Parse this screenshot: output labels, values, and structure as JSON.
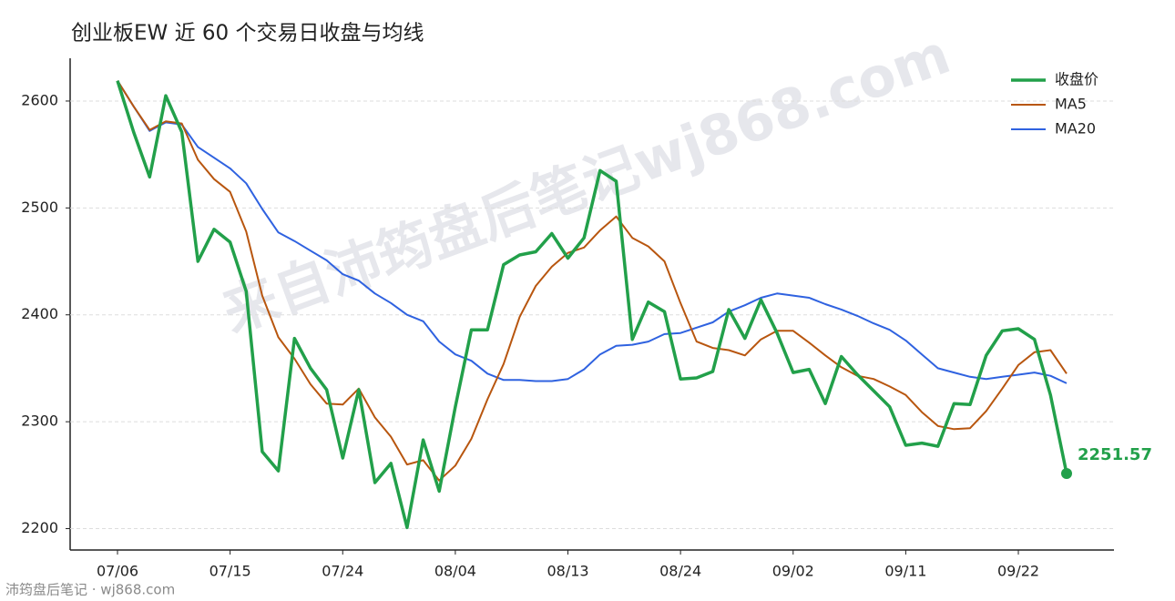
{
  "chart_data": {
    "type": "line",
    "title": "创业板EW 近 60 个交易日收盘与均线",
    "watermark": "来自沛筠盘后笔记wj868.com",
    "source": "沛筠盘后笔记 · wj868.com",
    "categories": [
      "07/06",
      null,
      null,
      null,
      null,
      null,
      null,
      "07/15",
      null,
      null,
      null,
      null,
      null,
      null,
      "07/24",
      null,
      null,
      null,
      null,
      null,
      null,
      "08/04",
      null,
      null,
      null,
      null,
      null,
      null,
      "08/13",
      null,
      null,
      null,
      null,
      null,
      null,
      "08/24",
      null,
      null,
      null,
      null,
      null,
      null,
      "09/02",
      null,
      null,
      null,
      null,
      null,
      null,
      "09/11",
      null,
      null,
      null,
      null,
      null,
      null,
      "09/22",
      null,
      null,
      null
    ],
    "series": [
      {
        "name": "收盘价",
        "color": "#22a04a",
        "values": [
          2619,
          2571,
          2529,
          2605,
          2571,
          2450,
          2480,
          2468,
          2422,
          2272,
          2254,
          2378,
          2350,
          2330,
          2266,
          2330,
          2243,
          2261,
          2201,
          2283,
          2235,
          2314,
          2386,
          2386,
          2447,
          2456,
          2459,
          2476,
          2453,
          2472,
          2535,
          2525,
          2377,
          2412,
          2403,
          2340,
          2341,
          2347,
          2405,
          2378,
          2414,
          2383,
          2346,
          2349,
          2317,
          2361,
          2344,
          2329,
          2314,
          2278,
          2280,
          2277,
          2317,
          2316,
          2362,
          2385,
          2387,
          2377,
          2325,
          2251.57
        ]
      },
      {
        "name": "MA5",
        "color": "#b8560f",
        "values": [
          2619,
          2595,
          2573,
          2581,
          2579,
          2545,
          2527,
          2515,
          2478,
          2418,
          2379,
          2359,
          2335,
          2317,
          2316,
          2331,
          2304,
          2286,
          2260,
          2264,
          2245,
          2259,
          2284,
          2321,
          2354,
          2398,
          2427,
          2445,
          2458,
          2463,
          2479,
          2492,
          2472,
          2464,
          2450,
          2411,
          2375,
          2369,
          2367,
          2362,
          2377,
          2385,
          2385,
          2374,
          2362,
          2351,
          2343,
          2340,
          2333,
          2325,
          2309,
          2296,
          2293,
          2294,
          2310,
          2331,
          2353,
          2365,
          2367,
          2345
        ]
      },
      {
        "name": "MA20",
        "color": "#2f62e0",
        "values": [
          2619,
          2595,
          2572,
          2580,
          2578,
          2557,
          2547,
          2537,
          2523,
          2499,
          2477,
          2469,
          2460,
          2451,
          2438,
          2432,
          2420,
          2411,
          2400,
          2394,
          2375,
          2363,
          2357,
          2345,
          2339,
          2339,
          2338,
          2338,
          2340,
          2349,
          2363,
          2371,
          2372,
          2375,
          2382,
          2383,
          2388,
          2393,
          2403,
          2409,
          2416,
          2420,
          2418,
          2416,
          2410,
          2405,
          2399,
          2392,
          2386,
          2376,
          2363,
          2350,
          2346,
          2342,
          2340,
          2342,
          2344,
          2346,
          2343,
          2336
        ]
      }
    ],
    "ylim": [
      2180,
      2640
    ],
    "yticks": [
      2200,
      2300,
      2400,
      2500,
      2600
    ],
    "grid": true,
    "legend": "upper right"
  }
}
